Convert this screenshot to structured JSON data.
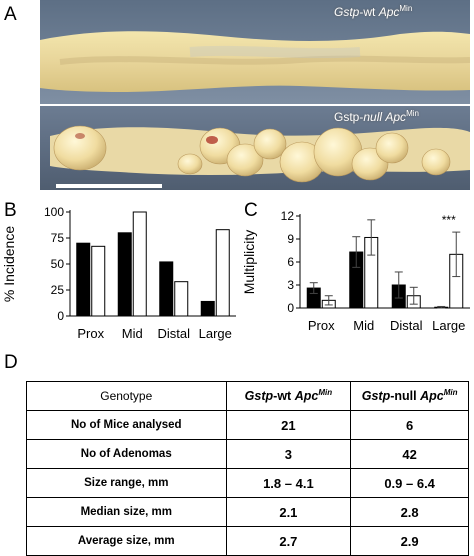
{
  "panels": {
    "a": "A",
    "b": "B",
    "c": "C",
    "d": "D"
  },
  "photo": {
    "top_caption": {
      "gene": "Gstp",
      "genotype": "-wt ",
      "apc": "Apc",
      "sup": "Min"
    },
    "bottom_caption": {
      "gene": "Gstp-",
      "genotype": "null",
      "space": " ",
      "apc": "Apc",
      "sup": "Min"
    }
  },
  "chart_data": [
    {
      "type": "bar",
      "panel": "B",
      "ylabel": "% Incidence",
      "ylim": [
        0,
        100
      ],
      "yticks": [
        0,
        25,
        50,
        75,
        100
      ],
      "categories": [
        "Prox",
        "Mid",
        "Distal",
        "Large"
      ],
      "series": [
        {
          "color": "#000000",
          "values": [
            70,
            80,
            52,
            14
          ]
        },
        {
          "color": "#ffffff",
          "values": [
            67,
            100,
            33,
            83
          ]
        }
      ]
    },
    {
      "type": "bar",
      "panel": "C",
      "ylabel": "Multiplicity",
      "ylim": [
        0,
        12
      ],
      "yticks": [
        0,
        3,
        6,
        9,
        12
      ],
      "categories": [
        "Prox",
        "Mid",
        "Distal",
        "Large"
      ],
      "annotation": "***",
      "series": [
        {
          "color": "#000000",
          "values": [
            2.6,
            7.3,
            3.0,
            0.1
          ],
          "errors": [
            0.7,
            2.0,
            1.7,
            0.1
          ]
        },
        {
          "color": "#ffffff",
          "values": [
            1.0,
            9.2,
            1.6,
            7.0
          ],
          "errors": [
            0.6,
            2.3,
            1.1,
            2.9
          ]
        }
      ]
    }
  ],
  "table": {
    "header": {
      "genotype": "Genotype",
      "wt": {
        "gene": "Gstp",
        "rest": "-wt ",
        "apc": "Apc",
        "sup": "Min"
      },
      "null": {
        "gene": "Gstp",
        "rest": "-null ",
        "apc": "Apc",
        "sup": "Min"
      }
    },
    "rows": [
      {
        "label": "No of Mice analysed",
        "wt": "21",
        "null": "6"
      },
      {
        "label": "No of Adenomas",
        "wt": "3",
        "null": "42"
      },
      {
        "label": "Size range, mm",
        "wt": "1.8 – 4.1",
        "null": "0.9 – 6.4"
      },
      {
        "label": "Median size, mm",
        "wt": "2.1",
        "null": "2.8"
      },
      {
        "label": "Average size, mm",
        "wt": "2.7",
        "null": "2.9"
      }
    ]
  }
}
